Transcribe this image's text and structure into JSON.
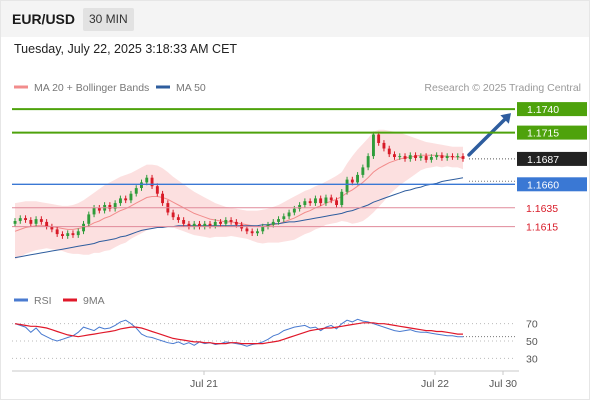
{
  "header": {
    "symbol": "EUR/USD",
    "timeframe": "30 MIN"
  },
  "timestamp": "Tuesday, July 22, 2025 3:18:33 AM CET",
  "legend": {
    "ma20": "MA 20 + Bollinger Bands",
    "ma50": "MA 50",
    "ma20_color": "#f28c8c",
    "ma50_color": "#2e5d9e"
  },
  "watermark": "Research © 2025 Trading Central",
  "rsi_legend": {
    "rsi": "RSI",
    "ma9": "9MA",
    "rsi_color": "#4a7bd0",
    "ma9_color": "#e0182a"
  },
  "colors": {
    "resistance": "#4ea20c",
    "support": "#e08a9a",
    "pivot": "#3a78d4",
    "arrow": "#2e5d9e",
    "up_candle": "#2e9c3a",
    "down_candle": "#d81b28",
    "band_fill": "#fbd5d5"
  },
  "chart_data": [
    {
      "type": "candlestick",
      "y_range": [
        1.1555,
        1.1755
      ],
      "x_labels": [
        "Jul 21",
        "Jul 22",
        "Jul 30"
      ],
      "levels": [
        {
          "value": 1.174,
          "label": "1.1740",
          "kind": "resistance"
        },
        {
          "value": 1.1715,
          "label": "1.1715",
          "kind": "resistance"
        },
        {
          "value": 1.1687,
          "label": "1.1687",
          "kind": "current"
        },
        {
          "value": 1.166,
          "label": "1.1660",
          "kind": "pivot"
        },
        {
          "value": 1.1635,
          "label": "1.1635",
          "kind": "support"
        },
        {
          "value": 1.1615,
          "label": "1.1615",
          "kind": "support"
        }
      ],
      "close": [
        1.1621,
        1.1624,
        1.1622,
        1.1618,
        1.1623,
        1.162,
        1.1615,
        1.1612,
        1.1607,
        1.1605,
        1.1608,
        1.1606,
        1.161,
        1.1618,
        1.1628,
        1.1635,
        1.1632,
        1.1638,
        1.1634,
        1.164,
        1.1645,
        1.1643,
        1.165,
        1.1656,
        1.1662,
        1.1667,
        1.1658,
        1.165,
        1.164,
        1.163,
        1.1625,
        1.1622,
        1.1618,
        1.1615,
        1.1618,
        1.1615,
        1.1618,
        1.1616,
        1.162,
        1.1618,
        1.1622,
        1.162,
        1.1617,
        1.1613,
        1.161,
        1.1608,
        1.161,
        1.1615,
        1.1617,
        1.162,
        1.1623,
        1.1626,
        1.163,
        1.1634,
        1.1638,
        1.1642,
        1.164,
        1.1645,
        1.164,
        1.1646,
        1.1643,
        1.1638,
        1.1652,
        1.1665,
        1.1662,
        1.167,
        1.1678,
        1.169,
        1.1713,
        1.1704,
        1.1698,
        1.1692,
        1.1689,
        1.169,
        1.1687,
        1.1691,
        1.1688,
        1.169,
        1.1686,
        1.1689,
        1.1691,
        1.1688,
        1.169,
        1.1689,
        1.169,
        1.1687
      ],
      "ma20": [
        1.161,
        1.1612,
        1.1614,
        1.1615,
        1.1616,
        1.1616,
        1.1616,
        1.1615,
        1.1614,
        1.1613,
        1.1612,
        1.1612,
        1.1613,
        1.1614,
        1.1616,
        1.1619,
        1.1621,
        1.1624,
        1.1626,
        1.1629,
        1.1632,
        1.1634,
        1.1637,
        1.164,
        1.1643,
        1.1646,
        1.1647,
        1.1647,
        1.1646,
        1.1644,
        1.1641,
        1.1638,
        1.1635,
        1.1632,
        1.1629,
        1.1627,
        1.1625,
        1.1623,
        1.1622,
        1.1621,
        1.162,
        1.162,
        1.1619,
        1.1618,
        1.1617,
        1.1616,
        1.1615,
        1.1615,
        1.1616,
        1.1617,
        1.1618,
        1.162,
        1.1622,
        1.1624,
        1.1627,
        1.163,
        1.1632,
        1.1635,
        1.1637,
        1.164,
        1.1642,
        1.1644,
        1.1647,
        1.1651,
        1.1654,
        1.1658,
        1.1662,
        1.1667,
        1.1673,
        1.1677,
        1.168,
        1.1683,
        1.1685,
        1.1687,
        1.1688,
        1.1689,
        1.169,
        1.1691,
        1.1691,
        1.1691,
        1.1691,
        1.169,
        1.169,
        1.1689,
        1.1689,
        1.1688
      ],
      "bb_upper": [
        1.164,
        1.1641,
        1.1642,
        1.1642,
        1.1642,
        1.1641,
        1.164,
        1.1639,
        1.1638,
        1.1637,
        1.1637,
        1.1638,
        1.164,
        1.1643,
        1.1647,
        1.1651,
        1.1655,
        1.1659,
        1.1662,
        1.1665,
        1.1668,
        1.167,
        1.1672,
        1.1675,
        1.1678,
        1.1681,
        1.1681,
        1.168,
        1.1677,
        1.1673,
        1.1668,
        1.1664,
        1.166,
        1.1656,
        1.1652,
        1.1649,
        1.1646,
        1.1643,
        1.164,
        1.1638,
        1.1636,
        1.1635,
        1.1634,
        1.1633,
        1.1632,
        1.1632,
        1.1632,
        1.1633,
        1.1634,
        1.1636,
        1.1638,
        1.1641,
        1.1644,
        1.1647,
        1.165,
        1.1653,
        1.1655,
        1.1658,
        1.166,
        1.1663,
        1.1666,
        1.1669,
        1.1673,
        1.1682,
        1.169,
        1.1697,
        1.1703,
        1.1709,
        1.1716,
        1.1718,
        1.1718,
        1.1717,
        1.1716,
        1.1715,
        1.1713,
        1.1711,
        1.1709,
        1.1707,
        1.1705,
        1.1704,
        1.1703,
        1.1702,
        1.1701,
        1.17,
        1.17,
        1.17
      ],
      "bb_lower": [
        1.158,
        1.1583,
        1.1586,
        1.1588,
        1.159,
        1.1591,
        1.1592,
        1.1591,
        1.159,
        1.1589,
        1.1587,
        1.1586,
        1.1586,
        1.1585,
        1.1585,
        1.1587,
        1.1587,
        1.1589,
        1.159,
        1.1593,
        1.1596,
        1.1598,
        1.1602,
        1.1605,
        1.1608,
        1.1611,
        1.1613,
        1.1614,
        1.1615,
        1.1615,
        1.1614,
        1.1612,
        1.161,
        1.1608,
        1.1606,
        1.1605,
        1.1604,
        1.1603,
        1.1604,
        1.1604,
        1.1604,
        1.1605,
        1.1604,
        1.1603,
        1.1602,
        1.16,
        1.1598,
        1.1597,
        1.1598,
        1.1598,
        1.1598,
        1.1599,
        1.16,
        1.1601,
        1.1604,
        1.1607,
        1.1609,
        1.1612,
        1.1614,
        1.1617,
        1.1618,
        1.1619,
        1.1621,
        1.162,
        1.1618,
        1.1619,
        1.1621,
        1.1625,
        1.163,
        1.1636,
        1.1642,
        1.1649,
        1.1654,
        1.1659,
        1.1663,
        1.1667,
        1.1671,
        1.1675,
        1.1677,
        1.1678,
        1.1679,
        1.1678,
        1.1679,
        1.1678,
        1.1678,
        1.1676
      ],
      "ma50": [
        1.1582,
        1.1583,
        1.1584,
        1.1585,
        1.1586,
        1.1587,
        1.1588,
        1.1589,
        1.159,
        1.1591,
        1.1592,
        1.1593,
        1.1594,
        1.1595,
        1.1596,
        1.1597,
        1.1599,
        1.16,
        1.1601,
        1.1602,
        1.1604,
        1.1605,
        1.1607,
        1.1609,
        1.1611,
        1.1612,
        1.1613,
        1.1614,
        1.1614,
        1.1615,
        1.1615,
        1.1616,
        1.1616,
        1.1616,
        1.1616,
        1.1616,
        1.1616,
        1.1616,
        1.1616,
        1.1616,
        1.1616,
        1.1616,
        1.1616,
        1.1616,
        1.1616,
        1.1616,
        1.1616,
        1.1617,
        1.1617,
        1.1618,
        1.1618,
        1.1619,
        1.162,
        1.162,
        1.1621,
        1.1622,
        1.1623,
        1.1624,
        1.1625,
        1.1626,
        1.1627,
        1.1628,
        1.1629,
        1.1631,
        1.1632,
        1.1634,
        1.1636,
        1.1638,
        1.1641,
        1.1643,
        1.1645,
        1.1647,
        1.1649,
        1.1651,
        1.1653,
        1.1654,
        1.1656,
        1.1657,
        1.1659,
        1.166,
        1.1661,
        1.1663,
        1.1664,
        1.1665,
        1.1666,
        1.1667
      ],
      "target_arrow": {
        "from": 1.1687,
        "to": 1.174
      }
    },
    {
      "type": "line",
      "title": "RSI",
      "y_range": [
        20,
        80
      ],
      "y_ticks": [
        30,
        50,
        70
      ],
      "rsi": [
        70,
        68,
        66,
        60,
        65,
        58,
        55,
        52,
        50,
        52,
        54,
        56,
        60,
        66,
        64,
        62,
        66,
        64,
        65,
        68,
        72,
        74,
        70,
        65,
        58,
        55,
        54,
        52,
        50,
        48,
        47,
        49,
        46,
        48,
        45,
        49,
        47,
        48,
        46,
        47,
        49,
        48,
        47,
        46,
        44,
        46,
        47,
        49,
        52,
        56,
        58,
        62,
        64,
        66,
        67,
        68,
        65,
        66,
        62,
        66,
        68,
        64,
        70,
        74,
        72,
        75,
        73,
        72,
        70,
        68,
        66,
        64,
        62,
        61,
        62,
        63,
        61,
        60,
        60,
        59,
        58,
        57,
        56,
        56,
        55,
        55
      ],
      "ma9": [
        70,
        69,
        68,
        67,
        67,
        66,
        65,
        63,
        61,
        59,
        57,
        56,
        55,
        56,
        57,
        58,
        59,
        60,
        61,
        62,
        64,
        65,
        66,
        66,
        65,
        63,
        61,
        59,
        57,
        55,
        53,
        52,
        51,
        50,
        49,
        49,
        48,
        48,
        47,
        47,
        47,
        48,
        48,
        47,
        47,
        47,
        47,
        47,
        48,
        49,
        50,
        52,
        54,
        56,
        58,
        60,
        62,
        63,
        64,
        65,
        65,
        66,
        67,
        68,
        69,
        70,
        71,
        71,
        71,
        70,
        70,
        69,
        68,
        67,
        66,
        65,
        64,
        63,
        62,
        62,
        61,
        61,
        60,
        59,
        58,
        58
      ]
    }
  ]
}
